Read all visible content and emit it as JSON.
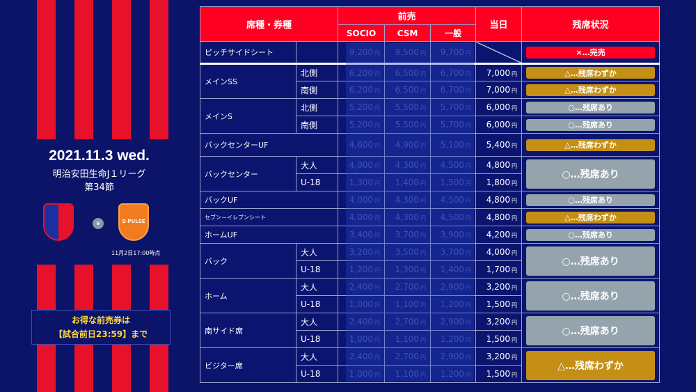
{
  "match": {
    "date": "2021.11.3 wed.",
    "league": "明治安田生命J１リーグ",
    "round": "第34節",
    "home_team": "FC東京",
    "away_team": "S-PULSE",
    "vs": "v",
    "as_of": "11月2日17:00時点"
  },
  "colors": {
    "red": "#ff0022",
    "gold": "#c48f14",
    "gray": "#95a3ad",
    "navy": "#0b1570"
  },
  "header": {
    "seat": "席種・券種",
    "advance": "前売",
    "socio": "SOCIO",
    "csm": "CSM",
    "general": "一般",
    "day_of": "当日",
    "status": "残席状況"
  },
  "currency": "円",
  "promo": {
    "line1": "お得な前売券は",
    "line2": "【試合前日23:59】まで"
  },
  "rows": [
    {
      "name": "ピッチサイドシート",
      "subs": [
        {
          "label": "",
          "socio": "9,200",
          "csm": "9,500",
          "general": "9,700",
          "day": ""
        }
      ],
      "status": [
        {
          "text": "×…完売",
          "color": "red"
        }
      ]
    },
    {
      "name": "メインSS",
      "subs": [
        {
          "label": "北側",
          "socio": "6,200",
          "csm": "6,500",
          "general": "6,700",
          "day": "7,000"
        },
        {
          "label": "南側",
          "socio": "6,200",
          "csm": "6,500",
          "general": "6,700",
          "day": "7,000"
        }
      ],
      "status": [
        {
          "text": "△…残席わずか",
          "color": "gold"
        },
        {
          "text": "△…残席わずか",
          "color": "gold"
        }
      ]
    },
    {
      "name": "メインS",
      "subs": [
        {
          "label": "北側",
          "socio": "5,200",
          "csm": "5,500",
          "general": "5,700",
          "day": "6,000"
        },
        {
          "label": "南側",
          "socio": "5,200",
          "csm": "5,500",
          "general": "5,700",
          "day": "6,000"
        }
      ],
      "status": [
        {
          "text": "○…残席あり",
          "color": "gray"
        },
        {
          "text": "○…残席あり",
          "color": "gray"
        }
      ]
    },
    {
      "name": "バックセンターUF",
      "subs": [
        {
          "socio": "4,600",
          "csm": "4,900",
          "general": "5,100",
          "day": "5,400"
        }
      ],
      "status": [
        {
          "text": "△…残席わずか",
          "color": "gold"
        }
      ]
    },
    {
      "name": "バックセンター",
      "subs": [
        {
          "label": "大人",
          "socio": "4,000",
          "csm": "4,300",
          "general": "4,500",
          "day": "4,800"
        },
        {
          "label": "U-18",
          "socio": "1,300",
          "csm": "1,400",
          "general": "1,500",
          "day": "1,800"
        }
      ],
      "status": [
        {
          "text": "○…残席あり",
          "color": "gray"
        }
      ]
    },
    {
      "name": "バックUF",
      "subs": [
        {
          "socio": "4,000",
          "csm": "4,300",
          "general": "4,500",
          "day": "4,800"
        }
      ],
      "status": [
        {
          "text": "○…残席あり",
          "color": "gray"
        }
      ]
    },
    {
      "name": "セブン－イレブンシート",
      "subs": [
        {
          "socio": "4,000",
          "csm": "4,300",
          "general": "4,500",
          "day": "4,800"
        }
      ],
      "status": [
        {
          "text": "△…残席わずか",
          "color": "gold"
        }
      ]
    },
    {
      "name": "ホームUF",
      "subs": [
        {
          "socio": "3,400",
          "csm": "3,700",
          "general": "3,900",
          "day": "4,200"
        }
      ],
      "status": [
        {
          "text": "○…残席あり",
          "color": "gray"
        }
      ]
    },
    {
      "name": "バック",
      "subs": [
        {
          "label": "大人",
          "socio": "3,200",
          "csm": "3,500",
          "general": "3,700",
          "day": "4,000"
        },
        {
          "label": "U-18",
          "socio": "1,200",
          "csm": "1,300",
          "general": "1,400",
          "day": "1,700"
        }
      ],
      "status": [
        {
          "text": "○…残席あり",
          "color": "gray"
        }
      ]
    },
    {
      "name": "ホーム",
      "subs": [
        {
          "label": "大人",
          "socio": "2,400",
          "csm": "2,700",
          "general": "2,900",
          "day": "3,200"
        },
        {
          "label": "U-18",
          "socio": "1,000",
          "csm": "1,100",
          "general": "1,200",
          "day": "1,500"
        }
      ],
      "status": [
        {
          "text": "○…残席あり",
          "color": "gray"
        }
      ]
    },
    {
      "name": "南サイド席",
      "subs": [
        {
          "label": "大人",
          "socio": "2,400",
          "csm": "2,700",
          "general": "2,900",
          "day": "3,200"
        },
        {
          "label": "U-18",
          "socio": "1,000",
          "csm": "1,100",
          "general": "1,200",
          "day": "1,500"
        }
      ],
      "status": [
        {
          "text": "○…残席あり",
          "color": "gray"
        }
      ]
    },
    {
      "name": "ビジター席",
      "subs": [
        {
          "label": "大人",
          "socio": "2,400",
          "csm": "2,700",
          "general": "2,900",
          "day": "3,200"
        },
        {
          "label": "U-18",
          "socio": "1,000",
          "csm": "1,100",
          "general": "1,200",
          "day": "1,500"
        }
      ],
      "status": [
        {
          "text": "△…残席わずか",
          "color": "gold"
        }
      ]
    }
  ]
}
